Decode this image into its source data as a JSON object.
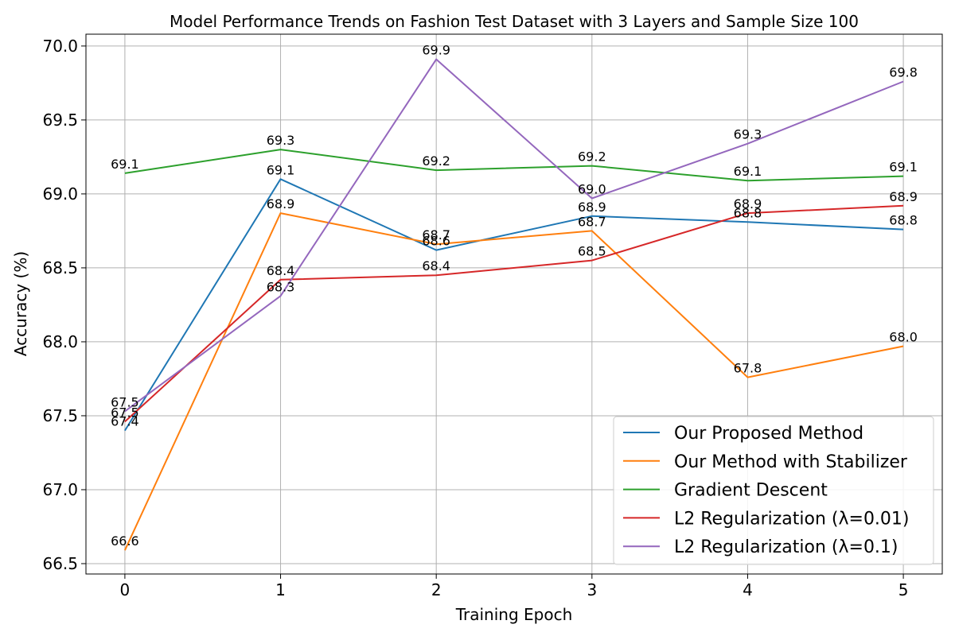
{
  "chart_data": {
    "type": "line",
    "title": "Model Performance Trends on Fashion Test Dataset with 3 Layers and Sample Size 100",
    "xlabel": "Training Epoch",
    "ylabel": "Accuracy (%)",
    "x": [
      0,
      1,
      2,
      3,
      4,
      5
    ],
    "xlim": [
      -0.25,
      5.25
    ],
    "ylim": [
      66.43,
      70.08
    ],
    "x_ticks": [
      "0",
      "1",
      "2",
      "3",
      "4",
      "5"
    ],
    "y_ticks": [
      "66.5",
      "67.0",
      "67.5",
      "68.0",
      "68.5",
      "69.0",
      "69.5",
      "70.0"
    ],
    "y_tick_values": [
      66.5,
      67.0,
      67.5,
      68.0,
      68.5,
      69.0,
      69.5,
      70.0
    ],
    "grid": true,
    "legend_position": "lower-right",
    "series": [
      {
        "name": "Our Proposed Method",
        "color": "#1f77b4",
        "values": [
          67.4,
          69.1,
          68.62,
          68.85,
          68.81,
          68.76
        ],
        "labels": [
          "67.4",
          "69.1",
          "68.6",
          "68.9",
          "68.8",
          "68.8"
        ]
      },
      {
        "name": "Our Method with Stabilizer",
        "color": "#ff7f0e",
        "values": [
          66.59,
          68.87,
          68.66,
          68.75,
          67.76,
          67.97
        ],
        "labels": [
          "66.6",
          "68.9",
          "68.7",
          "68.7",
          "67.8",
          "68.0"
        ]
      },
      {
        "name": "Gradient Descent",
        "color": "#2ca02c",
        "values": [
          69.14,
          69.3,
          69.16,
          69.19,
          69.09,
          69.12
        ],
        "labels": [
          "69.1",
          "69.3",
          "69.2",
          "69.2",
          "69.1",
          "69.1"
        ]
      },
      {
        "name": "L2 Regularization (λ=0.01)",
        "color": "#d62728",
        "values": [
          67.46,
          68.42,
          68.45,
          68.55,
          68.87,
          68.92
        ],
        "labels": [
          "67.5",
          "68.4",
          "68.4",
          "68.5",
          "68.9",
          "68.9"
        ]
      },
      {
        "name": "L2 Regularization (λ=0.1)",
        "color": "#9467bd",
        "values": [
          67.53,
          68.31,
          69.91,
          68.97,
          69.34,
          69.76
        ],
        "labels": [
          "67.5",
          "68.3",
          "69.9",
          "69.0",
          "69.3",
          "69.8"
        ]
      }
    ]
  }
}
